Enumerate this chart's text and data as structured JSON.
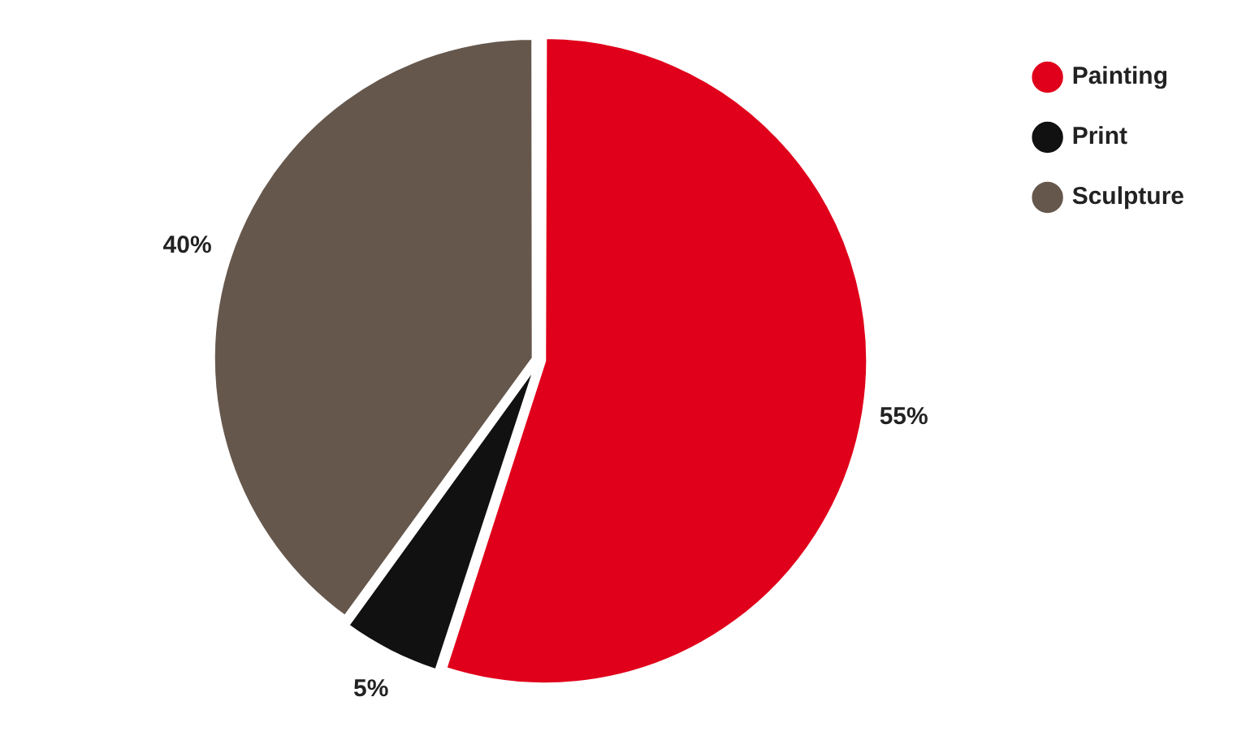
{
  "chart_data": {
    "type": "pie",
    "categories": [
      "Painting",
      "Print",
      "Sculpture"
    ],
    "values": [
      55,
      5,
      40
    ],
    "colors": [
      "#e0001b",
      "#111111",
      "#66574c"
    ],
    "value_labels": [
      "55%",
      "5%",
      "40%"
    ],
    "legend": "right"
  }
}
